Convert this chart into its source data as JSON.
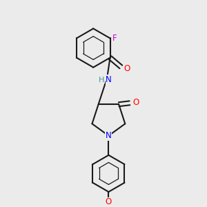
{
  "bg_color": "#ebebeb",
  "bond_color": "#1a1a1a",
  "bond_lw": 1.5,
  "atom_colors": {
    "O": "#ff0000",
    "N": "#0000ff",
    "F": "#cc00cc",
    "H": "#4a9090",
    "C": "#1a1a1a"
  },
  "font_size": 8.5
}
